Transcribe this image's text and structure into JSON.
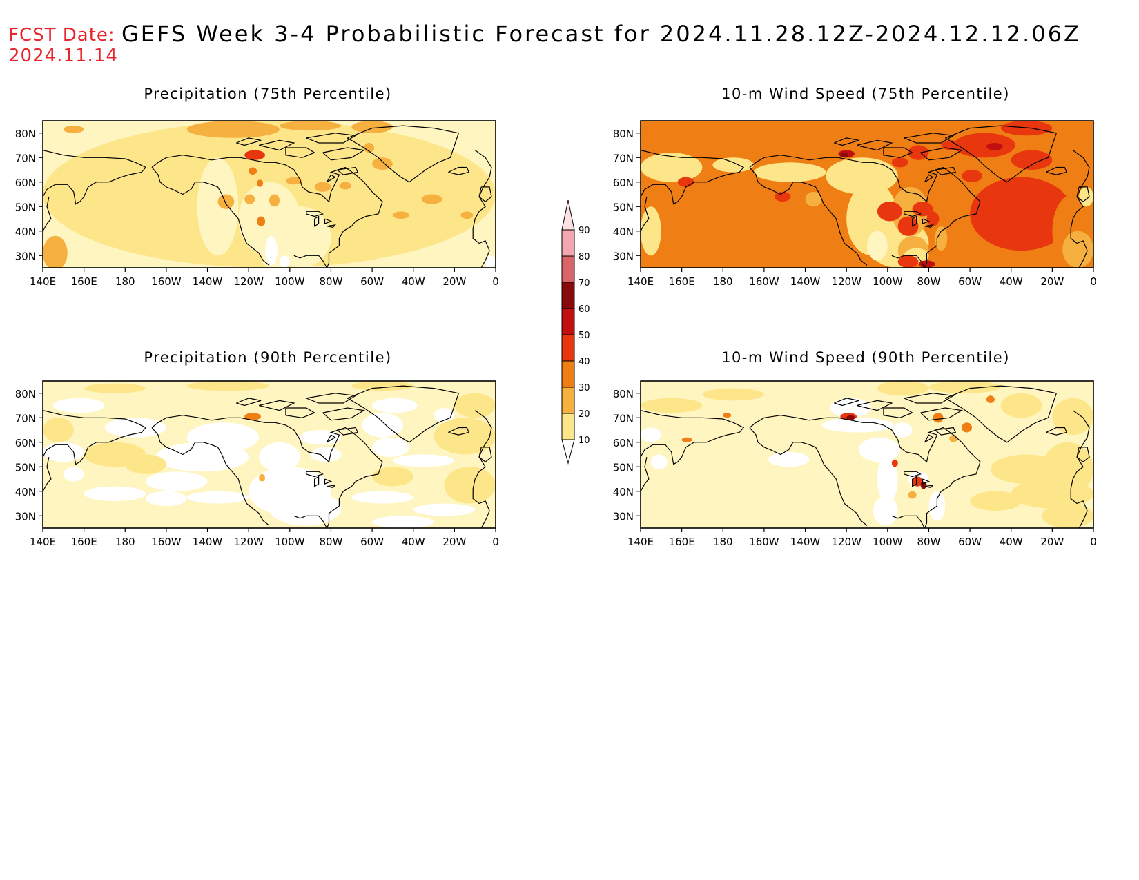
{
  "header": {
    "fcst_label": "FCST Date:",
    "fcst_date": "2024.11.14",
    "title": "GEFS Week 3-4 Probabilistic Forecast for 2024.11.28.12Z-2024.12.12.06Z"
  },
  "panels": [
    {
      "title": "Precipitation (75th Percentile)",
      "variant": "precip75"
    },
    {
      "title": "10-m Wind Speed (75th Percentile)",
      "variant": "wind75"
    },
    {
      "title": "Precipitation (90th Percentile)",
      "variant": "precip90"
    },
    {
      "title": "10-m Wind Speed (90th Percentile)",
      "variant": "wind90"
    }
  ],
  "axes": {
    "lon_ticks": [
      "140E",
      "160E",
      "180",
      "160W",
      "140W",
      "120W",
      "100W",
      "80W",
      "60W",
      "40W",
      "20W",
      "0"
    ],
    "lat_ticks": [
      "80N",
      "70N",
      "60N",
      "50N",
      "40N",
      "30N"
    ]
  },
  "colorbar": {
    "levels": [
      "10",
      "20",
      "30",
      "40",
      "50",
      "60",
      "70",
      "80",
      "90"
    ],
    "colors": [
      "#fff5c0",
      "#fde68a",
      "#f6b040",
      "#ef7e14",
      "#e8360e",
      "#c21010",
      "#880a0a",
      "#d9646a",
      "#f4a7ae",
      "#fde0e3"
    ]
  },
  "palette": {
    "white": "#ffffff",
    "c10": "#fff5c0",
    "c20": "#fde68a",
    "c30": "#f6b040",
    "c40": "#ef7e14",
    "c50": "#e8360e",
    "c60": "#c21010",
    "c70": "#880a0a"
  }
}
